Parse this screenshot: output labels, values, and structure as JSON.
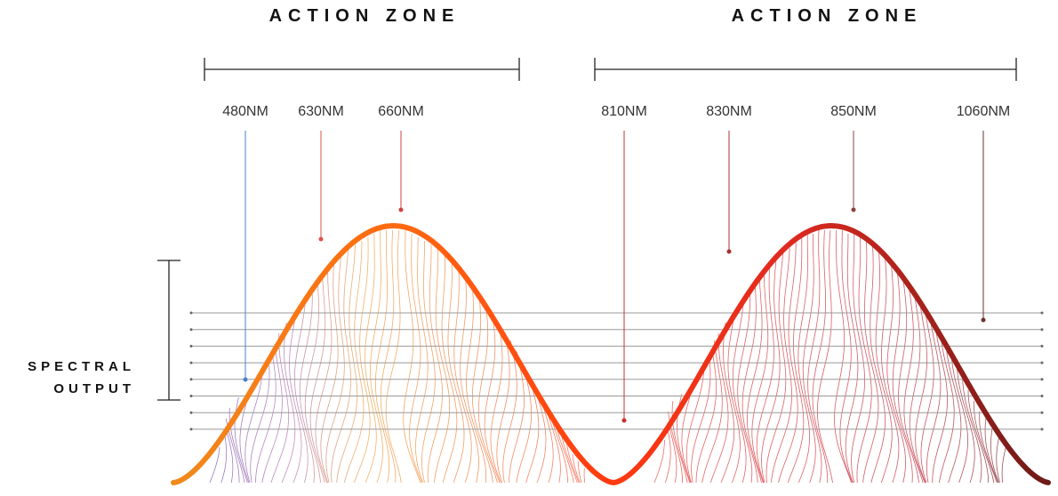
{
  "zones": [
    {
      "label": "ACTION ZONE"
    },
    {
      "label": "ACTION ZONE"
    }
  ],
  "wavelengths": [
    "480NM",
    "630NM",
    "660NM",
    "810NM",
    "830NM",
    "850NM",
    "1060NM"
  ],
  "side_label": [
    "SPECTRAL",
    "OUTPUT"
  ]
}
